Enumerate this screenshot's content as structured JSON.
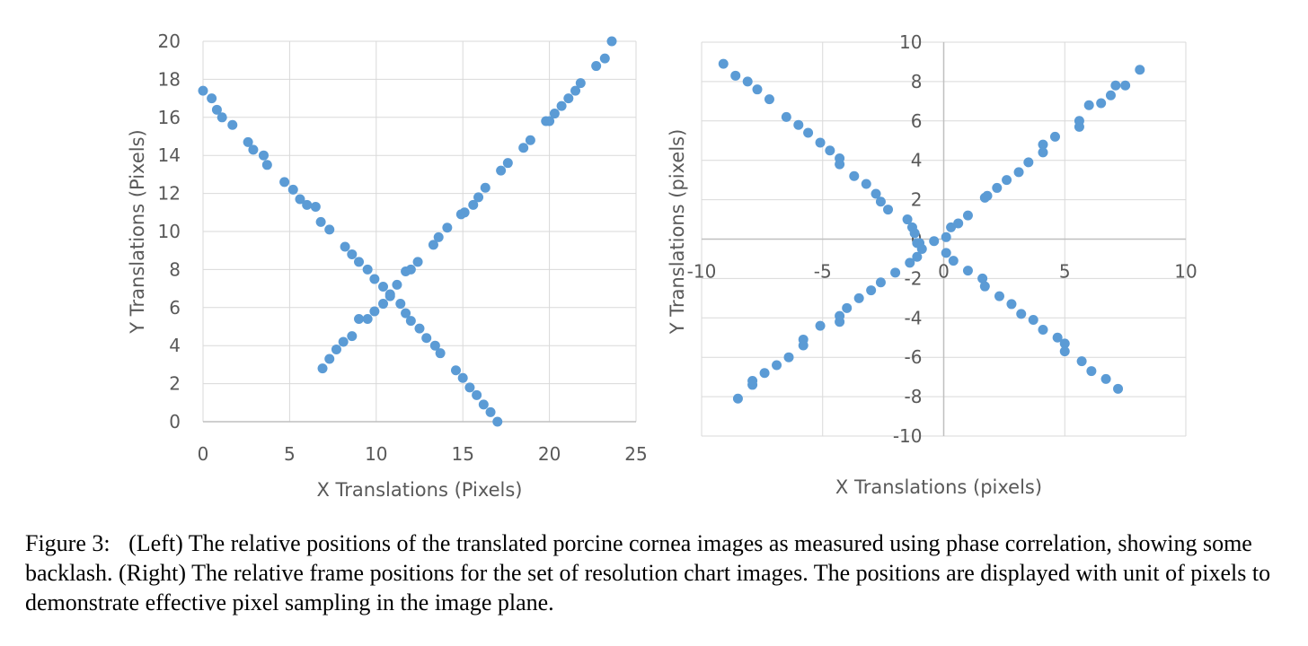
{
  "chart_data": [
    {
      "type": "scatter",
      "xlabel": "X Translations (Pixels)",
      "ylabel": "Y Translations (Pixels)",
      "xlim": [
        0,
        25
      ],
      "ylim": [
        0,
        20
      ],
      "xticks": [
        0,
        5,
        10,
        15,
        20,
        25
      ],
      "yticks": [
        0,
        2,
        4,
        6,
        8,
        10,
        12,
        14,
        16,
        18,
        20
      ],
      "grid": true,
      "marker_color": "#5B9BD5",
      "series": [
        {
          "x": [
            0,
            0.5,
            0.8,
            1.1,
            1.7,
            2.6,
            2.9,
            3.5,
            3.7,
            4.7,
            5.2,
            5.6,
            6.0,
            6.5,
            6.8,
            7.3,
            8.2,
            8.6,
            9.0,
            9.5,
            9.9,
            10.4,
            10.8,
            11.4,
            11.7,
            12.0,
            12.5,
            12.9,
            13.4,
            13.7,
            14.6,
            15.0,
            15.4,
            15.8,
            16.2,
            16.6,
            17.0
          ],
          "y": [
            17.4,
            17.0,
            16.4,
            16.0,
            15.6,
            14.7,
            14.3,
            14.0,
            13.5,
            12.6,
            12.2,
            11.7,
            11.4,
            11.3,
            10.5,
            10.1,
            9.2,
            8.8,
            8.4,
            8.0,
            7.5,
            7.1,
            6.6,
            6.2,
            5.7,
            5.3,
            4.9,
            4.4,
            4.0,
            3.6,
            2.7,
            2.3,
            1.8,
            1.4,
            0.9,
            0.5,
            0.0
          ]
        },
        {
          "x": [
            6.9,
            7.3,
            7.7,
            8.1,
            8.6,
            9.0,
            9.5,
            9.9,
            10.4,
            10.8,
            11.2,
            11.7,
            12.0,
            12.4,
            13.3,
            13.6,
            14.1,
            14.9,
            15.1,
            15.6,
            15.9,
            16.3,
            17.2,
            17.6,
            18.5,
            18.9,
            19.8,
            20.0,
            20.3,
            20.7,
            21.1,
            21.5,
            21.8,
            22.7,
            23.2,
            23.6
          ],
          "y": [
            2.8,
            3.3,
            3.8,
            4.2,
            4.5,
            5.4,
            5.4,
            5.8,
            6.2,
            6.7,
            7.2,
            7.9,
            8.0,
            8.4,
            9.3,
            9.7,
            10.2,
            10.9,
            11.0,
            11.4,
            11.8,
            12.3,
            13.2,
            13.6,
            14.4,
            14.8,
            15.8,
            15.8,
            16.2,
            16.6,
            17.0,
            17.4,
            17.8,
            18.7,
            19.1,
            20.0
          ]
        }
      ]
    },
    {
      "type": "scatter",
      "xlabel": "X Translations (pixels)",
      "ylabel": "Y Translations (pixels)",
      "xlim": [
        -10,
        10
      ],
      "ylim": [
        -10,
        10
      ],
      "xticks": [
        -10,
        -5,
        0,
        5,
        10
      ],
      "yticks": [
        -10,
        -8,
        -6,
        -4,
        -2,
        0,
        2,
        4,
        6,
        8,
        10
      ],
      "grid": true,
      "marker_color": "#5B9BD5",
      "series": [
        {
          "x": [
            -9.1,
            -8.6,
            -8.1,
            -7.7,
            -7.2,
            -6.5,
            -6.0,
            -5.6,
            -5.1,
            -4.7,
            -4.3,
            -4.3,
            -3.7,
            -3.2,
            -2.8,
            -2.6,
            -2.3,
            -1.5,
            -1.3,
            -1.2,
            -1.0,
            -0.9,
            -0.4,
            0.1,
            0.4,
            1.0,
            1.6,
            1.7,
            2.3,
            2.8,
            3.2,
            3.7,
            4.1,
            4.7,
            5.0,
            5.0,
            5.7,
            6.1,
            6.7,
            7.2
          ],
          "y": [
            8.9,
            8.3,
            8.0,
            7.6,
            7.1,
            6.2,
            5.8,
            5.4,
            4.9,
            4.5,
            4.1,
            3.8,
            3.2,
            2.8,
            2.3,
            1.9,
            1.5,
            1.0,
            0.6,
            0.3,
            -0.2,
            -0.5,
            -0.1,
            -0.7,
            -1.1,
            -1.6,
            -2.0,
            -2.4,
            -2.9,
            -3.3,
            -3.8,
            -4.1,
            -4.6,
            -5.0,
            -5.3,
            -5.7,
            -6.2,
            -6.7,
            -7.1,
            -7.6
          ]
        },
        {
          "x": [
            -8.5,
            -7.9,
            -7.9,
            -7.4,
            -6.9,
            -6.4,
            -5.8,
            -5.8,
            -5.1,
            -4.3,
            -4.3,
            -4.0,
            -3.5,
            -3.0,
            -2.6,
            -2.0,
            -1.4,
            -1.1,
            -1.1,
            0.1,
            0.3,
            0.6,
            1.0,
            1.7,
            1.8,
            2.2,
            2.6,
            3.1,
            3.5,
            4.1,
            4.1,
            4.6,
            5.6,
            5.6,
            6.0,
            6.5,
            6.9,
            7.1,
            7.5,
            8.1
          ],
          "y": [
            -8.1,
            -7.4,
            -7.2,
            -6.8,
            -6.4,
            -6.0,
            -5.4,
            -5.1,
            -4.4,
            -4.2,
            -3.9,
            -3.5,
            -3.0,
            -2.6,
            -2.2,
            -1.7,
            -1.2,
            -0.9,
            -0.2,
            0.1,
            0.6,
            0.8,
            1.2,
            2.1,
            2.2,
            2.6,
            3.0,
            3.4,
            3.9,
            4.4,
            4.8,
            5.2,
            5.7,
            6.0,
            6.8,
            6.9,
            7.3,
            7.8,
            7.8,
            8.6
          ]
        }
      ]
    }
  ],
  "caption": {
    "label": "Figure 3:",
    "text": "(Left) The relative positions of the translated porcine cornea images as measured using phase correlation, showing some backlash. (Right) The relative frame positions for the set of resolution chart images. The positions are displayed with unit of pixels to demonstrate effective pixel sampling in the image plane."
  }
}
